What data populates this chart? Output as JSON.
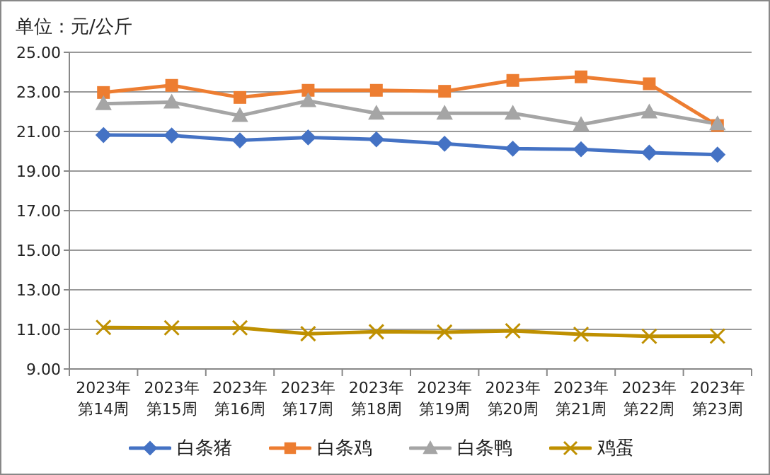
{
  "chart_data": {
    "type": "line",
    "ylabel": "单位：元/公斤",
    "categories": [
      "2023年第14周",
      "2023年第15周",
      "2023年第16周",
      "2023年第17周",
      "2023年第18周",
      "2023年第19周",
      "2023年第20周",
      "2023年第21周",
      "2023年第22周",
      "2023年第23周"
    ],
    "series": [
      {
        "name": "白条猪",
        "color": "#4472c4",
        "marker": "diamond",
        "values": [
          20.82,
          20.8,
          20.55,
          20.7,
          20.6,
          20.38,
          20.13,
          20.1,
          19.93,
          19.83
        ]
      },
      {
        "name": "白条鸡",
        "color": "#ed7d31",
        "marker": "square",
        "values": [
          22.97,
          23.33,
          22.72,
          23.08,
          23.08,
          23.03,
          23.58,
          23.76,
          23.41,
          21.3
        ]
      },
      {
        "name": "白条鸭",
        "color": "#a5a5a5",
        "marker": "triangle",
        "values": [
          22.4,
          22.48,
          21.8,
          22.55,
          21.92,
          21.92,
          21.92,
          21.35,
          21.98,
          21.38
        ]
      },
      {
        "name": "鸡蛋",
        "color": "#bf9000",
        "marker": "cross",
        "values": [
          11.1,
          11.08,
          11.08,
          10.78,
          10.88,
          10.86,
          10.93,
          10.75,
          10.65,
          10.66
        ]
      }
    ],
    "ylim": [
      9,
      25
    ],
    "yticks": [
      {
        "value": 9,
        "label": "9.00"
      },
      {
        "value": 11,
        "label": "11.00"
      },
      {
        "value": 13,
        "label": "13.00"
      },
      {
        "value": 15,
        "label": "15.00"
      },
      {
        "value": 17,
        "label": "17.00"
      },
      {
        "value": 19,
        "label": "19.00"
      },
      {
        "value": 21,
        "label": "21.00"
      },
      {
        "value": 23,
        "label": "23.00"
      },
      {
        "value": 25,
        "label": "25.00"
      }
    ],
    "grid": "y",
    "legend": "bottom"
  }
}
